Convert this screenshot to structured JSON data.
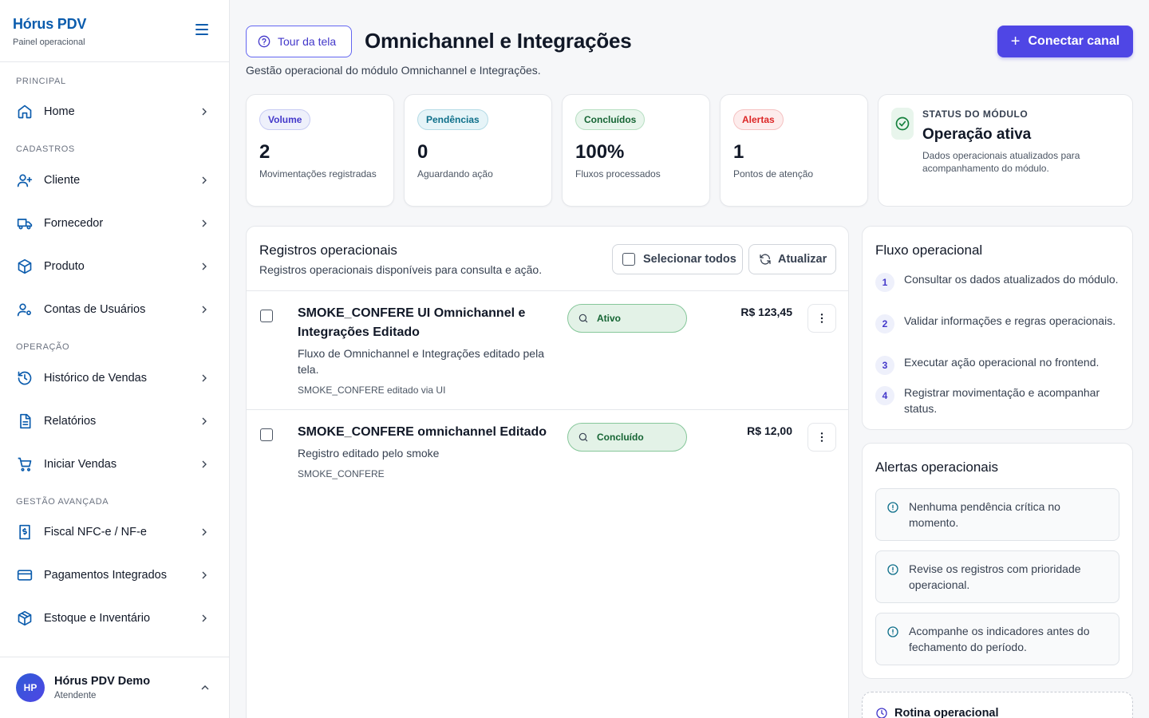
{
  "sidebar": {
    "brand_title": "Hórus PDV",
    "brand_sub": "Painel operacional",
    "sections": {
      "principal": "PRINCIPAL",
      "cadastros": "CADASTROS",
      "operacao": "OPERAÇÃO",
      "gestao": "GESTÃO AVANÇADA"
    },
    "items": {
      "home": "Home",
      "cliente": "Cliente",
      "fornecedor": "Fornecedor",
      "produto": "Produto",
      "contas": "Contas de Usuários",
      "historico": "Histórico de Vendas",
      "relatorios": "Relatórios",
      "iniciar": "Iniciar Vendas",
      "fiscal": "Fiscal NFC-e / NF-e",
      "pagamentos": "Pagamentos Integrados",
      "estoque": "Estoque e Inventário"
    },
    "user": {
      "initials": "HP",
      "name": "Hórus PDV Demo",
      "role": "Atendente"
    }
  },
  "header": {
    "tour_label": "Tour da tela",
    "title": "Omnichannel e Integrações",
    "subtitle": "Gestão operacional do módulo Omnichannel e Integrações.",
    "connect_label": "Conectar canal"
  },
  "kpis": {
    "volume": {
      "badge": "Volume",
      "value": "2",
      "caption": "Movimentações registradas"
    },
    "pendencias": {
      "badge": "Pendências",
      "value": "0",
      "caption": "Aguardando ação"
    },
    "concluidos": {
      "badge": "Concluídos",
      "value": "100%",
      "caption": "Fluxos processados"
    },
    "alertas": {
      "badge": "Alertas",
      "value": "1",
      "caption": "Pontos de atenção"
    }
  },
  "status": {
    "eyebrow": "STATUS DO MÓDULO",
    "title": "Operação ativa",
    "description": "Dados operacionais atualizados para acompanhamento do módulo."
  },
  "records": {
    "title": "Registros operacionais",
    "subtitle": "Registros operacionais disponíveis para consulta e ação.",
    "select_all": "Selecionar todos",
    "refresh": "Atualizar",
    "rows": [
      {
        "title": "SMOKE_CONFERE UI Omnichannel e Integrações Editado",
        "description": "Fluxo de Omnichannel e Integrações editado pela tela.",
        "meta": "SMOKE_CONFERE editado via UI",
        "status": "Ativo",
        "price": "R$ 123,45"
      },
      {
        "title": "SMOKE_CONFERE omnichannel Editado",
        "description": "Registro editado pelo smoke",
        "meta": "SMOKE_CONFERE",
        "status": "Concluído",
        "price": "R$ 12,00"
      }
    ]
  },
  "flow": {
    "title": "Fluxo operacional",
    "steps": [
      {
        "n": "1",
        "text": "Consultar os dados atualizados do módulo."
      },
      {
        "n": "2",
        "text": "Validar informações e regras operacionais."
      },
      {
        "n": "3",
        "text": "Executar ação operacional no frontend."
      },
      {
        "n": "4",
        "text": "Registrar movimentação e acompanhar status."
      }
    ]
  },
  "alerts": {
    "title": "Alertas operacionais",
    "items": [
      "Nenhuma pendência crítica no momento.",
      "Revise os registros com prioridade operacional.",
      "Acompanhe os indicadores antes do fechamento do período."
    ]
  },
  "routine": {
    "title": "Rotina operacional"
  },
  "colors": {
    "brand": "#0b5cad",
    "accent": "#4f46e5",
    "success": "#166534",
    "danger": "#dc2626"
  }
}
